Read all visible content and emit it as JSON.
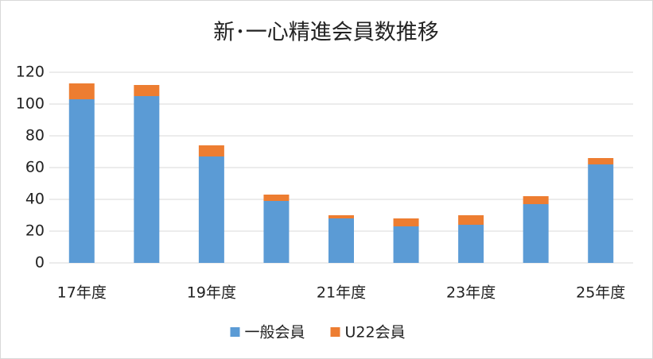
{
  "chart_data": {
    "type": "stacked_bar",
    "title": "新･一心精進会員数推移",
    "categories": [
      "17年度",
      null,
      "19年度",
      null,
      "21年度",
      null,
      "23年度",
      null,
      "25年度"
    ],
    "series": [
      {
        "name": "一般会員",
        "color": "#5b9bd5",
        "values": [
          103,
          105,
          67,
          39,
          28,
          23,
          24,
          37,
          62
        ]
      },
      {
        "name": "U22会員",
        "color": "#ed7d31",
        "values": [
          10,
          7,
          7,
          4,
          2,
          5,
          6,
          5,
          4
        ]
      }
    ],
    "ylim": [
      0,
      120
    ],
    "yticks": [
      0,
      20,
      40,
      60,
      80,
      100,
      120
    ],
    "grid": true,
    "legend": "bottom"
  }
}
